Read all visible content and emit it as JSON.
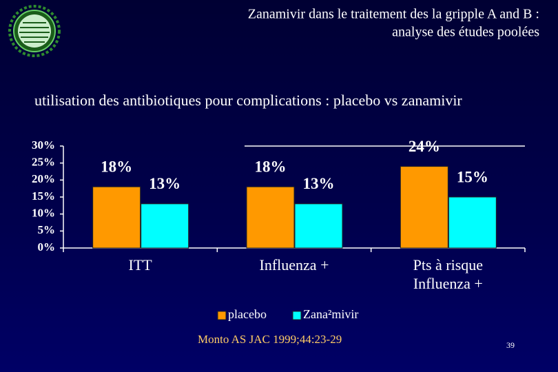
{
  "chart_data": {
    "type": "bar",
    "title": [
      "Zanamivir dans le traitement des la gripple A and B :",
      "analyse des études poolées"
    ],
    "subtitle": "utilisation des antibiotiques pour complications : placebo vs zanamivir",
    "categories": [
      "ITT",
      "Influenza +",
      "Pts à risque Influenza +"
    ],
    "series": [
      {
        "name": "placebo",
        "color": "#ff9900",
        "values": [
          18,
          18,
          24
        ],
        "value_labels": [
          "18%",
          "18%",
          "24%"
        ]
      },
      {
        "name": "Zana²mivir",
        "color": "#00ffff",
        "values": [
          13,
          13,
          15
        ],
        "value_labels": [
          "13%",
          "13%",
          "15%"
        ]
      }
    ],
    "ylim": [
      0,
      30
    ],
    "yticks": [
      {
        "value": 0,
        "label": "0%"
      },
      {
        "value": 5,
        "label": "5%"
      },
      {
        "value": 10,
        "label": "10%"
      },
      {
        "value": 15,
        "label": "15%"
      },
      {
        "value": 20,
        "label": "20%"
      },
      {
        "value": 25,
        "label": "25%"
      },
      {
        "value": 30,
        "label": "30%"
      }
    ],
    "legend": "bottom",
    "source": "Monto AS JAC 1999;44:23-29",
    "page_number": 39
  }
}
